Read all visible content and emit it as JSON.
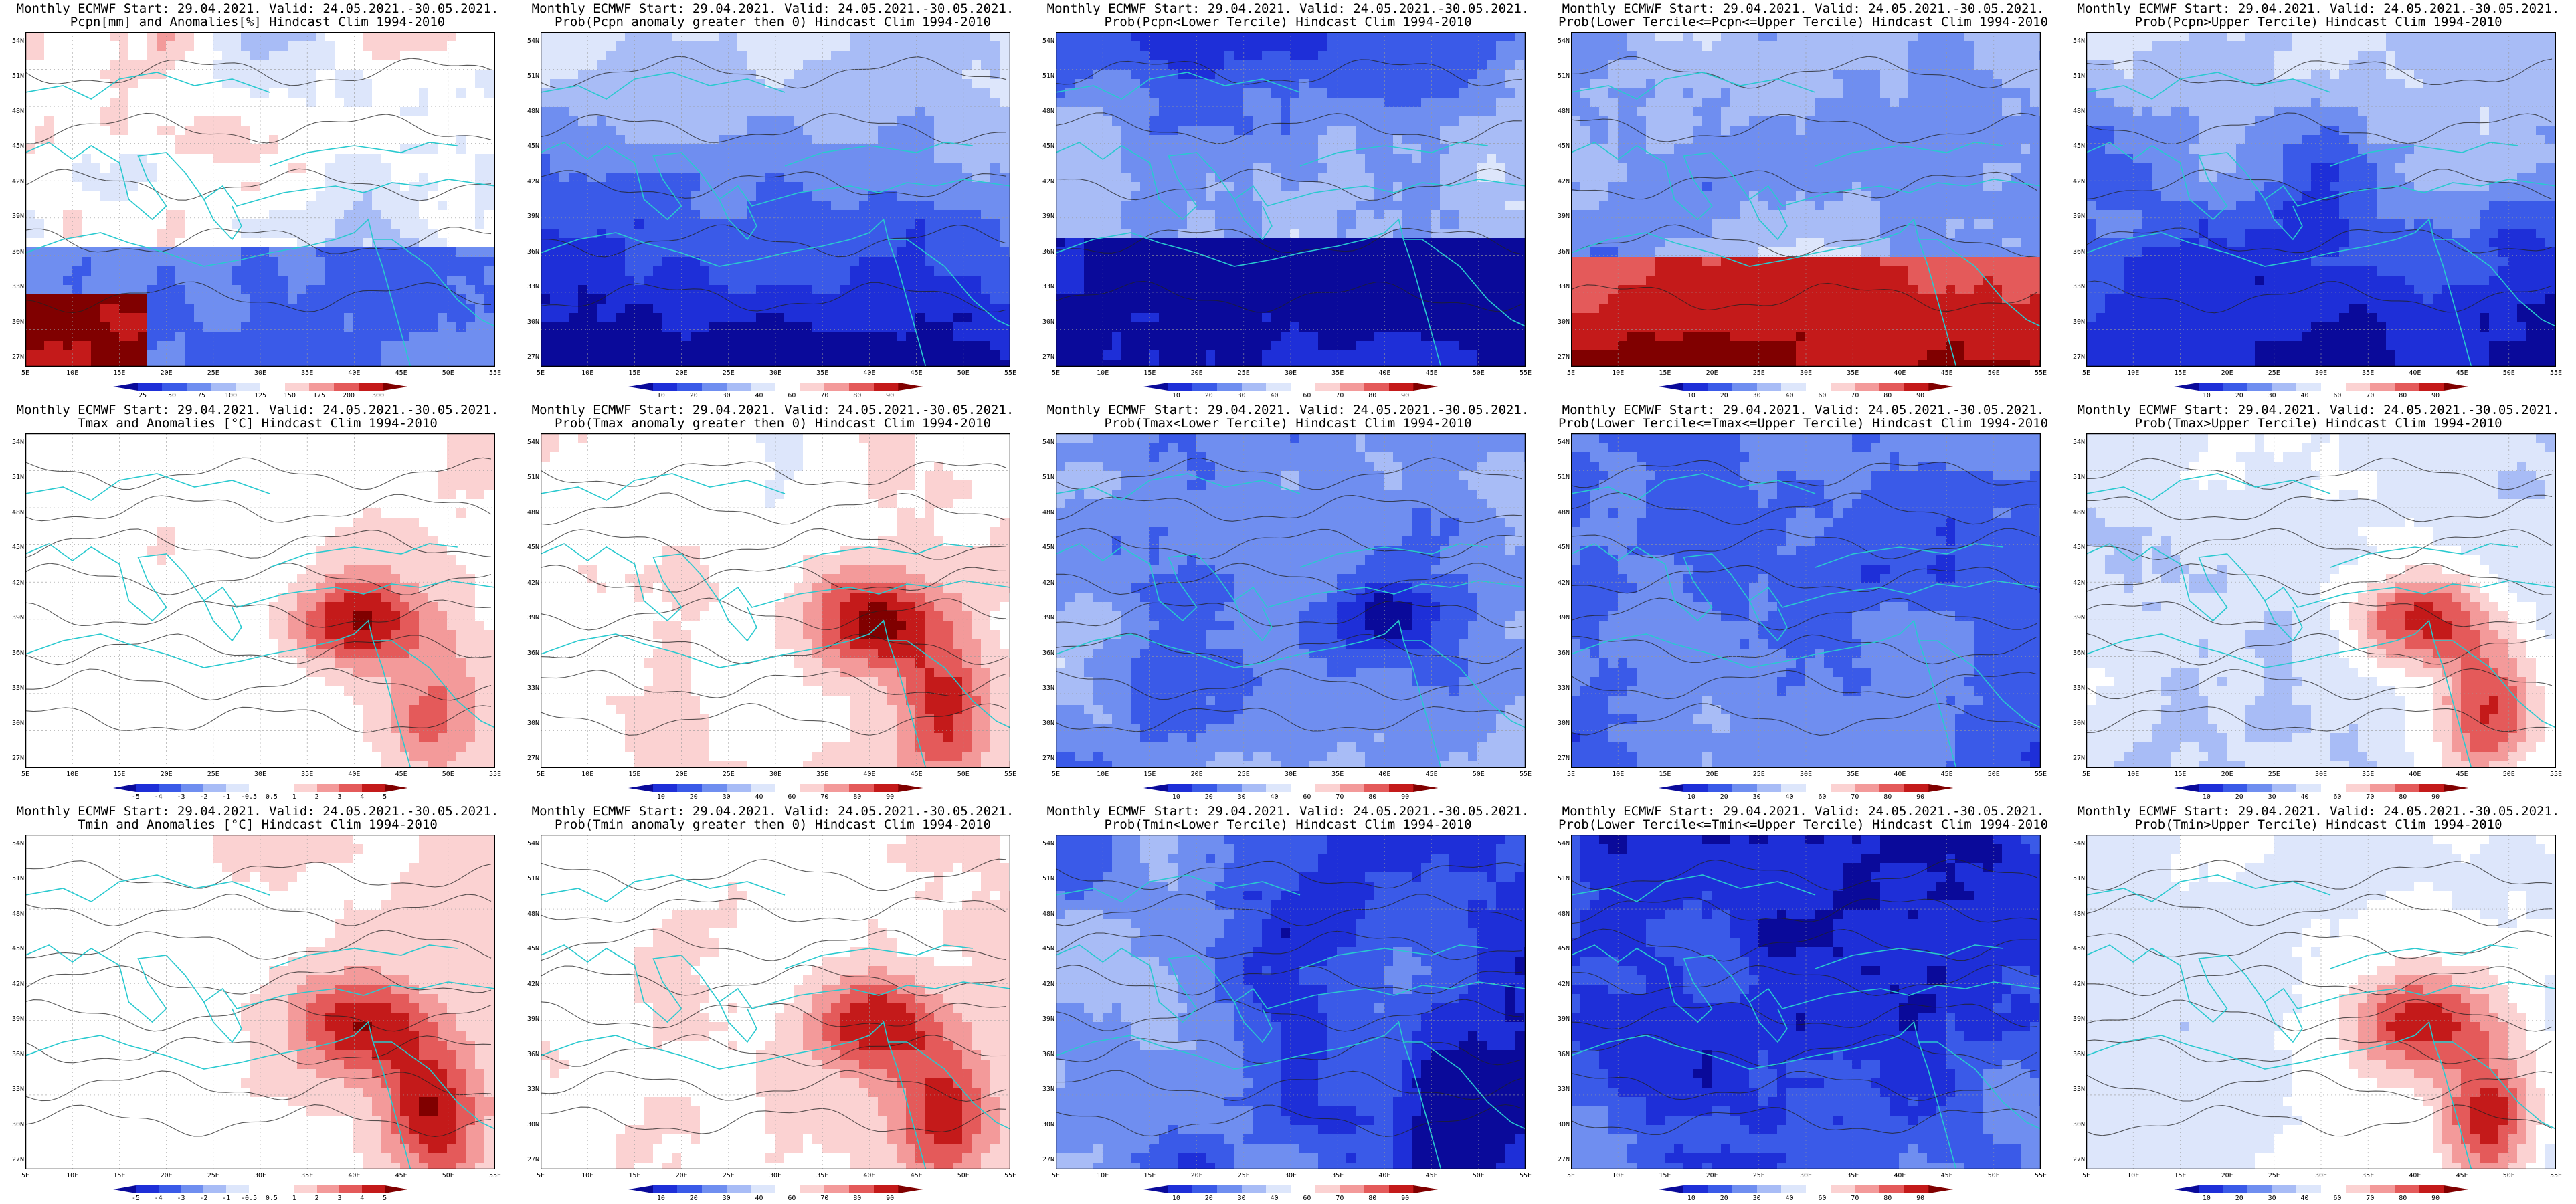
{
  "row_header": "Monthly ECMWF Start: 29.04.2021. Valid: 24.05.2021.-30.05.2021.",
  "lat_labels": [
    "54N",
    "51N",
    "48N",
    "45N",
    "42N",
    "39N",
    "36N",
    "33N",
    "30N",
    "27N"
  ],
  "lon_labels": [
    "5E",
    "10E",
    "15E",
    "20E",
    "25E",
    "30E",
    "35E",
    "40E",
    "45E",
    "50E",
    "55E"
  ],
  "colors": {
    "coast": "#29c9cf",
    "contour": "#222222",
    "prob_scale": [
      "#0a0a9a",
      "#1e2fd8",
      "#3a5ae8",
      "#6f8ef0",
      "#a8bcf6",
      "#dde6fb",
      "#ffffff",
      "#fbd2d2",
      "#f39a9a",
      "#e45a5a",
      "#c41a1a",
      "#800000"
    ],
    "anom_scale": [
      "#0a0a9a",
      "#1e2fd8",
      "#3a5ae8",
      "#6f8ef0",
      "#a8bcf6",
      "#dde6fb",
      "#ffffff",
      "#ffffff",
      "#fbd2d2",
      "#f39a9a",
      "#e45a5a",
      "#c41a1a",
      "#800000"
    ],
    "pcpn_scale": [
      "#0a0a9a",
      "#1e2fd8",
      "#3a5ae8",
      "#6f8ef0",
      "#a8bcf6",
      "#dde6fb",
      "#ffffff",
      "#fbd2d2",
      "#f39a9a",
      "#e45a5a",
      "#c41a1a",
      "#800000"
    ]
  },
  "scales": {
    "prob": [
      "10",
      "20",
      "30",
      "40",
      "60",
      "70",
      "80",
      "90"
    ],
    "anom": [
      "-5",
      "-4",
      "-3",
      "-2",
      "-1",
      "-0.5",
      "0.5",
      "1",
      "2",
      "3",
      "4",
      "5"
    ],
    "pcpn": [
      "25",
      "50",
      "75",
      "100",
      "125",
      "150",
      "175",
      "200",
      "300"
    ]
  },
  "panels": [
    {
      "title": "Pcpn[mm] and Anomalies[%] Hindcast Clim 1994-2010",
      "scale": "pcpn",
      "pattern": "pcpn_anom"
    },
    {
      "title": "Prob(Pcpn anomaly greater then 0) Hindcast Clim 1994-2010",
      "scale": "prob",
      "pattern": "pcpn_gt0"
    },
    {
      "title": "Prob(Pcpn<Lower Tercile) Hindcast Clim 1994-2010",
      "scale": "prob",
      "pattern": "pcpn_lower"
    },
    {
      "title": "Prob(Lower Tercile<=Pcpn<=Upper Tercile) Hindcast Clim 1994-2010",
      "scale": "prob",
      "pattern": "pcpn_middle"
    },
    {
      "title": "Prob(Pcpn>Upper Tercile) Hindcast Clim 1994-2010",
      "scale": "prob",
      "pattern": "pcpn_upper"
    },
    {
      "title": "Tmax and Anomalies [°C] Hindcast Clim 1994-2010",
      "scale": "anom",
      "pattern": "tmax_anom"
    },
    {
      "title": "Prob(Tmax anomaly greater then 0) Hindcast Clim 1994-2010",
      "scale": "prob",
      "pattern": "tmax_gt0"
    },
    {
      "title": "Prob(Tmax<Lower Tercile) Hindcast Clim 1994-2010",
      "scale": "prob",
      "pattern": "tmax_lower"
    },
    {
      "title": "Prob(Lower Tercile<=Tmax<=Upper Tercile) Hindcast Clim 1994-2010",
      "scale": "prob",
      "pattern": "tmax_middle"
    },
    {
      "title": "Prob(Tmax>Upper Tercile) Hindcast Clim 1994-2010",
      "scale": "prob",
      "pattern": "tmax_upper"
    },
    {
      "title": "Tmin and Anomalies [°C] Hindcast Clim 1994-2010",
      "scale": "anom",
      "pattern": "tmin_anom"
    },
    {
      "title": "Prob(Tmin anomaly greater then 0) Hindcast Clim 1994-2010",
      "scale": "prob",
      "pattern": "tmin_gt0"
    },
    {
      "title": "Prob(Tmin<Lower Tercile) Hindcast Clim 1994-2010",
      "scale": "prob",
      "pattern": "tmin_lower"
    },
    {
      "title": "Prob(Lower Tercile<=Tmin<=Upper Tercile) Hindcast Clim 1994-2010",
      "scale": "prob",
      "pattern": "tmin_middle"
    },
    {
      "title": "Prob(Tmin>Upper Tercile) Hindcast Clim 1994-2010",
      "scale": "prob",
      "pattern": "tmin_upper"
    }
  ]
}
